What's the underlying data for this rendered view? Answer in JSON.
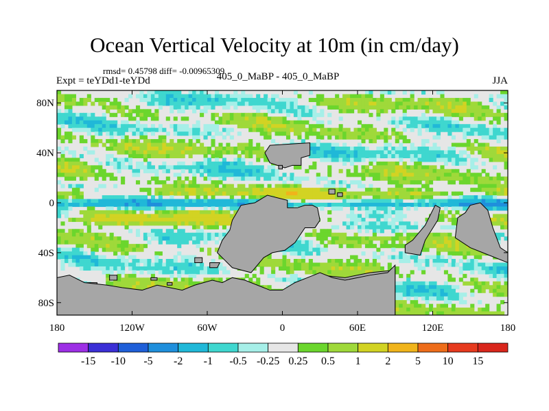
{
  "chart_data": {
    "type": "heatmap",
    "title": "Ocean Vertical Velocity at 10m (in cm/day)",
    "stats": "rmsd= 0.45798 diff= -0.00965309",
    "left_string": "Expt = teYDd1-teYDd",
    "center_string": "405_0_MaBP - 405_0_MaBP",
    "right_string": "JJA",
    "xlim": [
      -180,
      180
    ],
    "ylim": [
      -90,
      90
    ],
    "xticks": [
      {
        "value": -180,
        "label": "180"
      },
      {
        "value": -120,
        "label": "120W"
      },
      {
        "value": -60,
        "label": "60W"
      },
      {
        "value": 0,
        "label": "0"
      },
      {
        "value": 60,
        "label": "60E"
      },
      {
        "value": 120,
        "label": "120E"
      },
      {
        "value": 180,
        "label": "180"
      }
    ],
    "yticks": [
      {
        "value": 80,
        "label": "80N"
      },
      {
        "value": 40,
        "label": "40N"
      },
      {
        "value": 0,
        "label": "0"
      },
      {
        "value": -40,
        "label": "40S"
      },
      {
        "value": -80,
        "label": "80S"
      }
    ],
    "colorbar": {
      "levels": [
        "-15",
        "-10",
        "-5",
        "-2",
        "-1",
        "-0.5",
        "-0.25",
        "0.25",
        "0.5",
        "1",
        "2",
        "5",
        "10",
        "15"
      ],
      "colors": [
        "#9d2fe5",
        "#3b2fd6",
        "#1f5fd8",
        "#1f8fdc",
        "#20b8d8",
        "#3fd7cf",
        "#a6efe8",
        "#e6e6e6",
        "#6bd62d",
        "#9fd93a",
        "#d2d323",
        "#f0b41b",
        "#ee6d1a",
        "#e63a1e",
        "#d9261c"
      ]
    },
    "field_summary": "Alternating zonal bands of positive (green/yellow) and negative (cyan/blue) vertical velocity; strongest downwelling (blue) along the equator; land masses masked in gray.",
    "land_color": "#a6a6a6"
  }
}
